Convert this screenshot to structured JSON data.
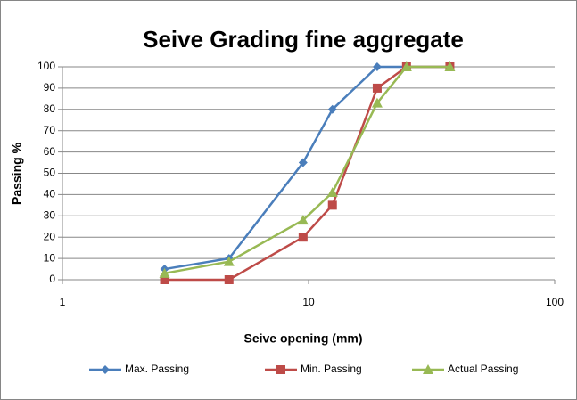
{
  "chart_data": {
    "type": "line",
    "title": "Seive Grading fine aggregate",
    "x_label": "Seive opening (mm)",
    "y_label": "Passing %",
    "x": [
      2.6,
      4.75,
      9.5,
      12.5,
      19,
      25,
      37.5
    ],
    "series": [
      {
        "name": "Max. Passing",
        "color": "#4a7ebb",
        "marker": "diamond",
        "values": [
          5,
          10,
          55,
          80,
          100,
          100,
          100
        ]
      },
      {
        "name": "Min. Passing",
        "color": "#be4b48",
        "marker": "square",
        "values": [
          0,
          0,
          20,
          35,
          90,
          100,
          100
        ]
      },
      {
        "name": "Actual Passing",
        "color": "#98b954",
        "marker": "triangle",
        "values": [
          3,
          8.5,
          28,
          41,
          83,
          100,
          100
        ]
      }
    ],
    "xscale": "log",
    "xlim": [
      1,
      100
    ],
    "xticks": [
      1,
      10,
      100
    ],
    "ylim": [
      0,
      100
    ],
    "yticks": [
      0,
      10,
      20,
      30,
      40,
      50,
      60,
      70,
      80,
      90,
      100
    ],
    "grid": true,
    "legend": "bottom"
  }
}
